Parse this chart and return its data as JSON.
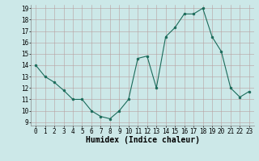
{
  "x": [
    0,
    1,
    2,
    3,
    4,
    5,
    6,
    7,
    8,
    9,
    10,
    11,
    12,
    13,
    14,
    15,
    16,
    17,
    18,
    19,
    20,
    21,
    22,
    23
  ],
  "y": [
    14.0,
    13.0,
    12.5,
    11.8,
    11.0,
    11.0,
    10.0,
    9.5,
    9.3,
    10.0,
    11.0,
    14.6,
    14.8,
    12.0,
    16.5,
    17.3,
    18.5,
    18.5,
    19.0,
    16.5,
    15.2,
    12.0,
    11.2,
    11.7
  ],
  "xlabel": "Humidex (Indice chaleur)",
  "ylim_min": 9,
  "ylim_max": 19,
  "xlim_min": 0,
  "xlim_max": 23,
  "yticks": [
    9,
    10,
    11,
    12,
    13,
    14,
    15,
    16,
    17,
    18,
    19
  ],
  "xticks": [
    0,
    1,
    2,
    3,
    4,
    5,
    6,
    7,
    8,
    9,
    10,
    11,
    12,
    13,
    14,
    15,
    16,
    17,
    18,
    19,
    20,
    21,
    22,
    23
  ],
  "line_color": "#1a6b5a",
  "marker_color": "#1a6b5a",
  "bg_color": "#cce8e8",
  "grid_color": "#b8a0a0",
  "xlabel_fontsize": 7,
  "tick_fontsize": 5.5
}
